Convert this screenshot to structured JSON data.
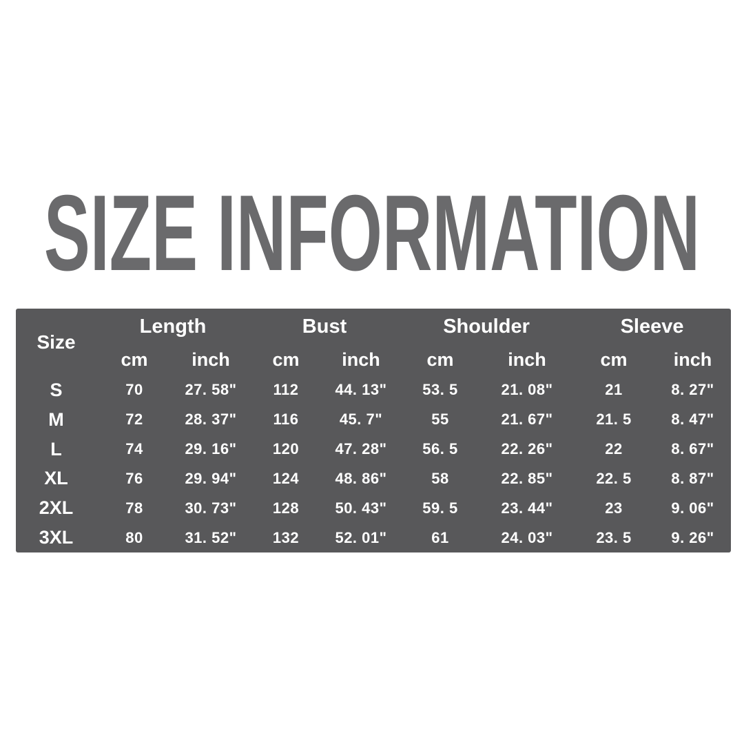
{
  "title": {
    "text": "SIZE INFORMATION",
    "color": "#6a6a6c"
  },
  "table": {
    "background": "#58585a",
    "text_color": "#ffffff",
    "size_header": "Size",
    "groups": [
      {
        "label": "Length"
      },
      {
        "label": "Bust"
      },
      {
        "label": "Shoulder"
      },
      {
        "label": "Sleeve"
      }
    ],
    "units": [
      "cm",
      "inch"
    ],
    "rows": [
      {
        "size": "S",
        "values": [
          "70",
          "27. 58\"",
          "112",
          "44. 13\"",
          "53. 5",
          "21. 08\"",
          "21",
          "8. 27\""
        ]
      },
      {
        "size": "M",
        "values": [
          "72",
          "28. 37\"",
          "116",
          "45. 7\"",
          "55",
          "21. 67\"",
          "21. 5",
          "8. 47\""
        ]
      },
      {
        "size": "L",
        "values": [
          "74",
          "29. 16\"",
          "120",
          "47. 28\"",
          "56. 5",
          "22. 26\"",
          "22",
          "8. 67\""
        ]
      },
      {
        "size": "XL",
        "values": [
          "76",
          "29. 94\"",
          "124",
          "48. 86\"",
          "58",
          "22. 85\"",
          "22. 5",
          "8. 87\""
        ]
      },
      {
        "size": "2XL",
        "values": [
          "78",
          "30. 73\"",
          "128",
          "50. 43\"",
          "59. 5",
          "23. 44\"",
          "23",
          "9. 06\""
        ]
      },
      {
        "size": "3XL",
        "values": [
          "80",
          "31. 52\"",
          "132",
          "52. 01\"",
          "61",
          "24. 03\"",
          "23. 5",
          "9. 26\""
        ]
      }
    ]
  },
  "chart_data": {
    "type": "table",
    "title": "SIZE INFORMATION",
    "columns": [
      "Size",
      "Length cm",
      "Length inch",
      "Bust cm",
      "Bust inch",
      "Shoulder cm",
      "Shoulder inch",
      "Sleeve cm",
      "Sleeve inch"
    ],
    "rows": [
      [
        "S",
        70,
        "27.58\"",
        112,
        "44.13\"",
        53.5,
        "21.08\"",
        21,
        "8.27\""
      ],
      [
        "M",
        72,
        "28.37\"",
        116,
        "45.7\"",
        55,
        "21.67\"",
        21.5,
        "8.47\""
      ],
      [
        "L",
        74,
        "29.16\"",
        120,
        "47.28\"",
        56.5,
        "22.26\"",
        22,
        "8.67\""
      ],
      [
        "XL",
        76,
        "29.94\"",
        124,
        "48.86\"",
        58,
        "22.85\"",
        22.5,
        "8.87\""
      ],
      [
        "2XL",
        78,
        "30.73\"",
        128,
        "50.43\"",
        59.5,
        "23.44\"",
        23,
        "9.06\""
      ],
      [
        "3XL",
        80,
        "31.52\"",
        132,
        "52.01\"",
        61,
        "24.03\"",
        23.5,
        "9.26\""
      ]
    ]
  }
}
